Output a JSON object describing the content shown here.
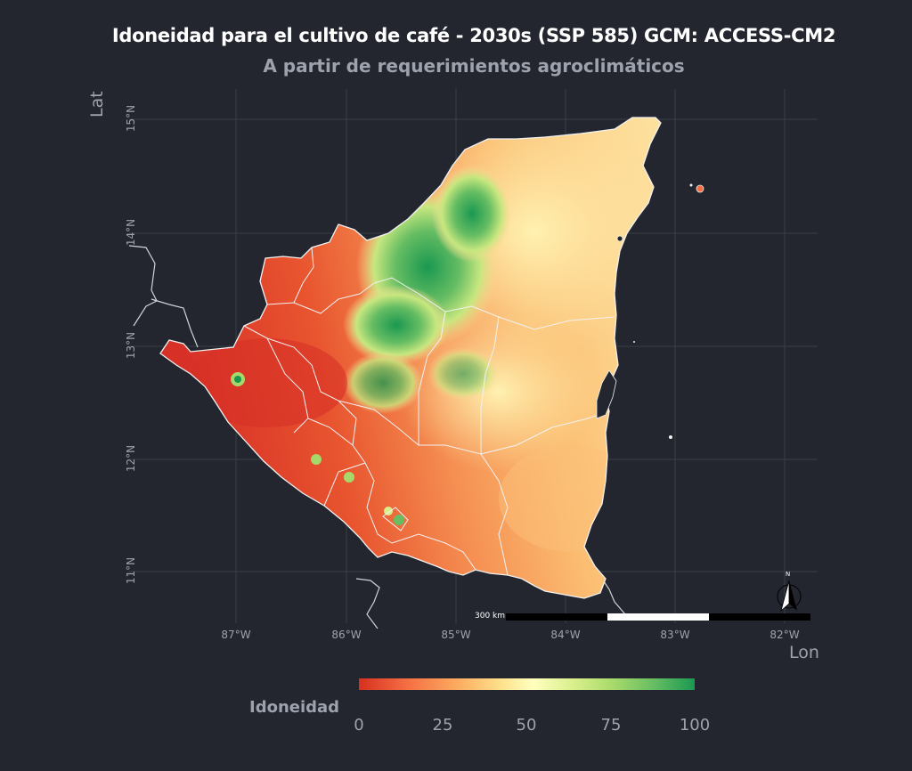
{
  "title": "Idoneidad para el cultivo de café - 2030s (SSP 585) GCM: ACCESS-CM2",
  "subtitle": "A partir de requerimientos agroclimáticos",
  "axes": {
    "y_title": "Lat",
    "x_title": "Lon",
    "x_ticks": [
      "87°W",
      "86°W",
      "85°W",
      "84°W",
      "83°W",
      "82°W"
    ],
    "y_ticks": [
      "15°N",
      "14°N",
      "13°N",
      "12°N",
      "11°N"
    ]
  },
  "legend": {
    "title": "Idoneidad",
    "ticks": [
      "0",
      "25",
      "50",
      "75",
      "100"
    ],
    "colors": [
      "#d7301f",
      "#f46d43",
      "#fdae61",
      "#fee08b",
      "#ffffbf",
      "#d9ef8b",
      "#a6d96a",
      "#66bd63",
      "#1a9850"
    ]
  },
  "scalebar": {
    "label": "300 km"
  },
  "north_arrow": {
    "label": "N"
  },
  "colors": {
    "background": "#23262e",
    "grid": "#3a3e48",
    "border": "#e8e8e8"
  }
}
